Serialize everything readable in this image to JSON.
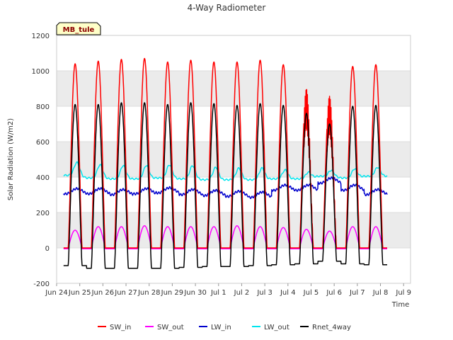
{
  "chart_data": {
    "type": "line",
    "title": "4-Way Radiometer",
    "xlabel": "Time",
    "ylabel": "Solar Radiation (W/m2)",
    "annotation": "MB_tule",
    "ylim": [
      -200,
      1200
    ],
    "yticks": [
      -200,
      0,
      200,
      400,
      600,
      800,
      1000,
      1200
    ],
    "xlim": [
      0,
      15.3
    ],
    "xtick_labels": [
      "Jun 24",
      "Jun 25",
      "Jun 26",
      "Jun 27",
      "Jun 28",
      "Jun 29",
      "Jun 30",
      "Jul 1",
      "Jul 2",
      "Jul 3",
      "Jul 4",
      "Jul 5",
      "Jul 6",
      "Jul 7",
      "Jul 8",
      "Jul 9"
    ],
    "day_start": 0.8,
    "days": 14,
    "colors": {
      "SW_in": "#ff0000",
      "SW_out": "#ff00ff",
      "LW_in": "#0000cd",
      "LW_out": "#00e5ee",
      "Rnet_4way": "#000000",
      "band": "#ebebeb",
      "grid": "#dddddd"
    },
    "series": [
      {
        "name": "SW_in",
        "daily_peak": [
          1040,
          1055,
          1065,
          1070,
          1050,
          1060,
          1050,
          1050,
          1060,
          1035,
          900,
          860,
          1025,
          1035
        ]
      },
      {
        "name": "SW_out",
        "daily_peak": [
          100,
          120,
          120,
          125,
          120,
          120,
          120,
          125,
          120,
          115,
          105,
          95,
          120,
          120
        ],
        "night": -5
      },
      {
        "name": "LW_in",
        "daily_mean": [
          320,
          320,
          315,
          320,
          325,
          315,
          310,
          305,
          300,
          340,
          340,
          380,
          340,
          315
        ]
      },
      {
        "name": "LW_out",
        "daily_peak": [
          485,
          470,
          465,
          465,
          470,
          465,
          455,
          450,
          450,
          440,
          425,
          440,
          445,
          455
        ],
        "daily_min": [
          410,
          395,
          390,
          390,
          395,
          390,
          385,
          385,
          385,
          390,
          390,
          405,
          395,
          405
        ]
      },
      {
        "name": "Rnet_4way",
        "daily_peak": [
          810,
          810,
          820,
          820,
          810,
          820,
          815,
          805,
          815,
          805,
          760,
          700,
          800,
          805
        ],
        "night": [
          -100,
          -115,
          -115,
          -115,
          -115,
          -110,
          -105,
          -105,
          -100,
          -95,
          -90,
          -75,
          -90,
          -95
        ]
      }
    ]
  }
}
